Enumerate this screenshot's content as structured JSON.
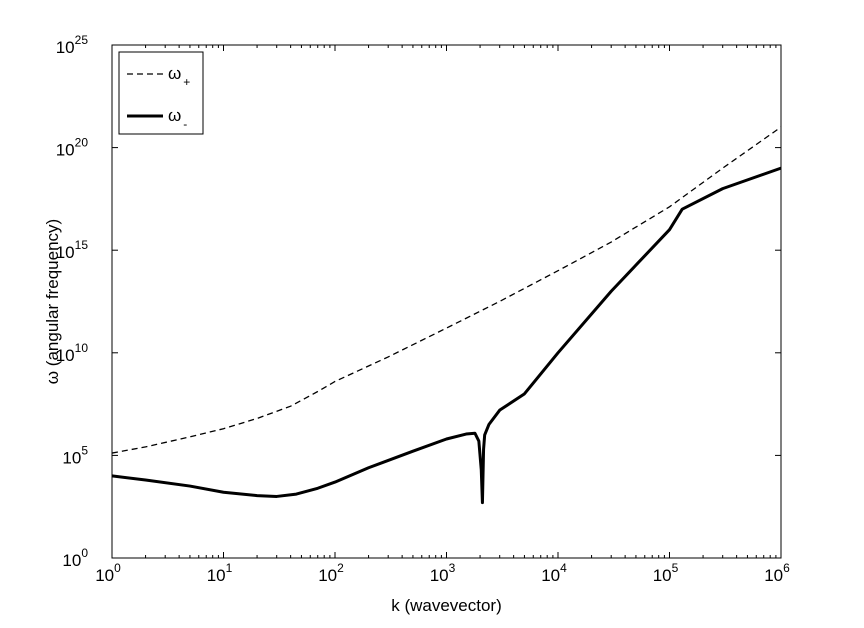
{
  "chart_data": {
    "type": "line",
    "title": "",
    "xlabel": "k (wavevector)",
    "ylabel": "ω (angular frequency)",
    "xscale": "log",
    "yscale": "log",
    "xlim": [
      1,
      1000000
    ],
    "ylim": [
      1,
      1e+25
    ],
    "grid": false,
    "legend_position": "top-left",
    "x_ticks": [
      {
        "base": "10",
        "exp": "0",
        "value": 1
      },
      {
        "base": "10",
        "exp": "1",
        "value": 10
      },
      {
        "base": "10",
        "exp": "2",
        "value": 100
      },
      {
        "base": "10",
        "exp": "3",
        "value": 1000
      },
      {
        "base": "10",
        "exp": "4",
        "value": 10000
      },
      {
        "base": "10",
        "exp": "5",
        "value": 100000
      },
      {
        "base": "10",
        "exp": "6",
        "value": 1000000
      }
    ],
    "y_ticks": [
      {
        "base": "10",
        "exp": "0",
        "value": 1
      },
      {
        "base": "10",
        "exp": "5",
        "value": 100000.0
      },
      {
        "base": "10",
        "exp": "10",
        "value": 10000000000.0
      },
      {
        "base": "10",
        "exp": "15",
        "value": 1000000000000000.0
      },
      {
        "base": "10",
        "exp": "20",
        "value": 1e+20
      },
      {
        "base": "10",
        "exp": "25",
        "value": 1e+25
      }
    ],
    "series": [
      {
        "name": "ω+",
        "name_symbol": "ω",
        "name_sub": "+",
        "style": "dashed",
        "color": "#000000",
        "x": [
          1,
          2,
          5,
          10,
          20,
          40,
          70,
          100,
          300,
          1000,
          3000,
          10000,
          30000,
          100000,
          300000,
          1000000
        ],
        "y": [
          130000.0,
          260000.0,
          800000.0,
          2000000.0,
          6300000.0,
          25000000.0,
          130000000.0,
          400000000.0,
          6300000000.0,
          160000000000.0,
          3200000000000.0,
          100000000000000.0,
          2500000000000000.0,
          1.3e+17,
          1e+19,
          1e+21
        ]
      },
      {
        "name": "ω-",
        "name_symbol": "ω",
        "name_sub": "-",
        "style": "solid",
        "color": "#000000",
        "x": [
          1,
          2,
          5,
          10,
          20,
          30,
          45,
          70,
          100,
          200,
          500,
          1000,
          1500,
          1800,
          1950,
          2050,
          2100,
          2150,
          2200,
          2400,
          3000,
          5000,
          10000,
          30000,
          100000,
          130000,
          300000,
          1000000
        ],
        "y": [
          10000.0,
          6300.0,
          3200.0,
          1600.0,
          1100.0,
          1000.0,
          1300.0,
          2500.0,
          5000.0,
          25000.0,
          160000.0,
          630000.0,
          1100000.0,
          1200000.0,
          500000.0,
          20000.0,
          500.0,
          200000.0,
          1000000.0,
          3200000.0,
          16000000.0,
          100000000.0,
          10000000000.0,
          10000000000000.0,
          1e+16,
          1e+17,
          1e+18,
          1e+19
        ]
      }
    ]
  }
}
